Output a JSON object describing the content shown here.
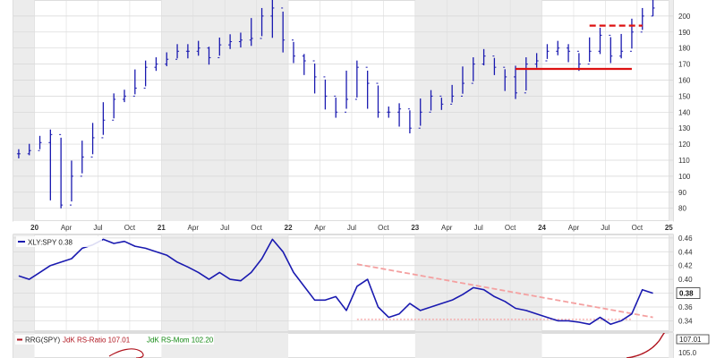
{
  "chart_data": [
    {
      "type": "bar",
      "subtype": "ohlc-price",
      "x": [
        "2019-11",
        "2019-12",
        "2020-01",
        "2020-02",
        "2020-03",
        "2020-04",
        "2020-05",
        "2020-06",
        "2020-07",
        "2020-08",
        "2020-09",
        "2020-10",
        "2020-11",
        "2020-12",
        "2021-01",
        "2021-02",
        "2021-03",
        "2021-04",
        "2021-05",
        "2021-06",
        "2021-07",
        "2021-08",
        "2021-09",
        "2021-10",
        "2021-11",
        "2021-12",
        "2022-01",
        "2022-02",
        "2022-03",
        "2022-04",
        "2022-05",
        "2022-06",
        "2022-07",
        "2022-08",
        "2022-09",
        "2022-10",
        "2022-11",
        "2022-12",
        "2023-01",
        "2023-02",
        "2023-03",
        "2023-04",
        "2023-05",
        "2023-06",
        "2023-07",
        "2023-08",
        "2023-09",
        "2023-10",
        "2023-11",
        "2023-12",
        "2024-01",
        "2024-02",
        "2024-03",
        "2024-04",
        "2024-05",
        "2024-06",
        "2024-07",
        "2024-08",
        "2024-09",
        "2024-10",
        "2024-11"
      ],
      "values": [
        114,
        116,
        121,
        126,
        82,
        100,
        112,
        124,
        135,
        148,
        150,
        155,
        168,
        170,
        173,
        178,
        178,
        180,
        174,
        182,
        184,
        185,
        186,
        200,
        205,
        185,
        175,
        172,
        162,
        150,
        140,
        148,
        168,
        158,
        140,
        140,
        142,
        130,
        140,
        150,
        145,
        150,
        158,
        170,
        175,
        168,
        162,
        152,
        170,
        172,
        178,
        180,
        178,
        170,
        178,
        188,
        175,
        178,
        190,
        200,
        205
      ],
      "ylim": [
        72,
        210
      ],
      "y_ticks": [
        "80",
        "90",
        "100",
        "110",
        "120",
        "130",
        "140",
        "150",
        "160",
        "170",
        "180",
        "190",
        "200"
      ],
      "x_tick_labels": [
        "20",
        "Apr",
        "Jul",
        "Oct",
        "21",
        "Apr",
        "Jul",
        "Oct",
        "22",
        "Apr",
        "Jul",
        "Oct",
        "23",
        "Apr",
        "Jul",
        "Oct",
        "24",
        "Apr",
        "Jul",
        "Oct",
        "25"
      ],
      "annotations": [
        {
          "type": "support",
          "y": 167,
          "x_start": "2023-10",
          "x_end": "2024-09",
          "color": "#dd1111"
        },
        {
          "type": "resistance",
          "y": 194,
          "x_start": "2024-05",
          "x_end": "2024-10",
          "color": "#dd1111"
        }
      ]
    },
    {
      "type": "line",
      "subtype": "relative-strength",
      "series": [
        {
          "name": "XLY:SPY",
          "last": "0.38",
          "color": "#1a1ab0"
        }
      ],
      "values": [
        0.405,
        0.4,
        0.41,
        0.42,
        0.425,
        0.43,
        0.445,
        0.45,
        0.458,
        0.452,
        0.455,
        0.448,
        0.445,
        0.44,
        0.435,
        0.425,
        0.418,
        0.41,
        0.4,
        0.41,
        0.4,
        0.398,
        0.41,
        0.43,
        0.458,
        0.44,
        0.41,
        0.39,
        0.37,
        0.37,
        0.375,
        0.355,
        0.39,
        0.4,
        0.36,
        0.345,
        0.35,
        0.365,
        0.355,
        0.36,
        0.365,
        0.37,
        0.378,
        0.388,
        0.385,
        0.375,
        0.368,
        0.358,
        0.355,
        0.35,
        0.345,
        0.34,
        0.34,
        0.338,
        0.335,
        0.345,
        0.335,
        0.34,
        0.35,
        0.385,
        0.38
      ],
      "ylim": [
        0.325,
        0.465
      ],
      "y_ticks": [
        "0.34",
        "0.36",
        "0.38",
        "0.40",
        "0.42",
        "0.44",
        "0.46"
      ],
      "title": "XLY:SPY 0.38",
      "last_value_label": "0.38",
      "annotations": [
        {
          "type": "downtrend",
          "y_start": 0.422,
          "y_end": 0.345,
          "x_start": "2022-07",
          "x_end": "2024-11",
          "color": "#f4a0a0"
        },
        {
          "type": "support",
          "y": 0.342,
          "x_start": "2022-07",
          "x_end": "2024-09",
          "color": "#f4a0a0"
        }
      ]
    },
    {
      "type": "line",
      "subtype": "rrg",
      "title": "RRG(SPY)",
      "legend": [
        "JdK RS-Ratio 107.01",
        "JdK RS-Mom 102.20"
      ],
      "y_ticks": [
        "105.0"
      ],
      "last_value_label": "107.01"
    }
  ]
}
